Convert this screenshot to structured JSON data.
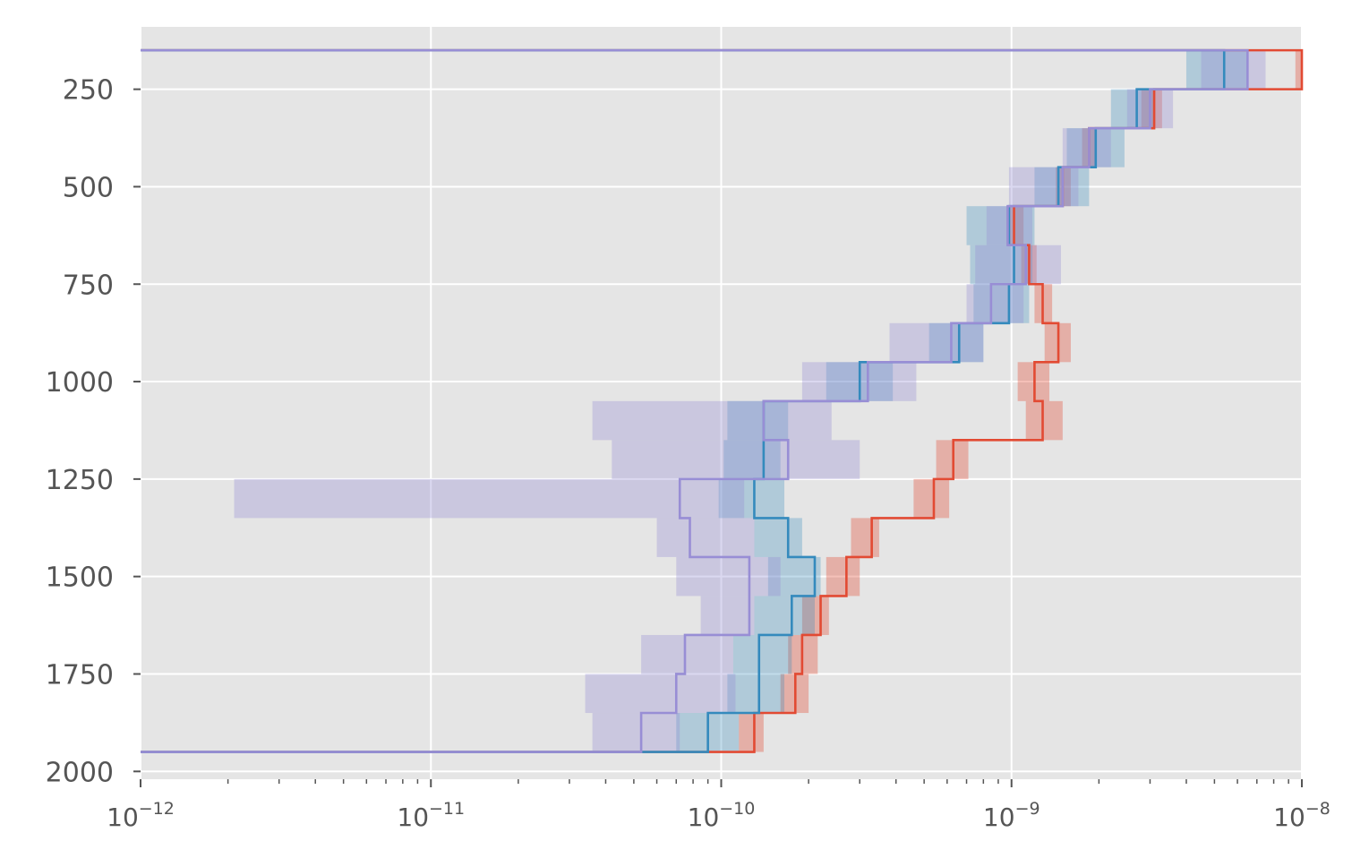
{
  "chart_data": {
    "type": "line",
    "subtype": "step-profile-with-uncertainty-bands",
    "title": "",
    "xlabel": "",
    "ylabel": "",
    "x_scale": "log",
    "xlim": [
      1e-12,
      1e-08
    ],
    "ylim": [
      2020,
      90
    ],
    "y_inverted": true,
    "x_tick_labels": [
      {
        "value": 1e-12,
        "base": "10",
        "exp": "−12"
      },
      {
        "value": 1e-11,
        "base": "10",
        "exp": "−11"
      },
      {
        "value": 1e-10,
        "base": "10",
        "exp": "−10"
      },
      {
        "value": 1e-09,
        "base": "10",
        "exp": "−9"
      },
      {
        "value": 1e-08,
        "base": "10",
        "exp": "−8"
      }
    ],
    "y_ticks": [
      250,
      500,
      750,
      1000,
      1250,
      1500,
      1750,
      2000
    ],
    "y_tick_labels": [
      "250",
      "500",
      "750",
      "1000",
      "1250",
      "1500",
      "1750",
      "2000"
    ],
    "grid": true,
    "background": "#e5e5e5",
    "grid_color": "#ffffff",
    "series": [
      {
        "color": "#e24a33",
        "band_opacity": 0.35,
        "profile": [
          {
            "y0": 150,
            "y1": 250,
            "x": 1e-08,
            "lo": 9.5e-09,
            "hi": 1e-08
          },
          {
            "y0": 250,
            "y1": 350,
            "x": 3.1e-09,
            "lo": 2.8e-09,
            "hi": 3.3e-09
          },
          {
            "y0": 350,
            "y1": 450,
            "x": 1.85e-09,
            "lo": 1.75e-09,
            "hi": 1.95e-09
          },
          {
            "y0": 450,
            "y1": 550,
            "x": 1.5e-09,
            "lo": 1.42e-09,
            "hi": 1.6e-09
          },
          {
            "y0": 550,
            "y1": 650,
            "x": 1.02e-09,
            "lo": 9.6e-10,
            "hi": 1.1e-09
          },
          {
            "y0": 650,
            "y1": 750,
            "x": 1.15e-09,
            "lo": 1.08e-09,
            "hi": 1.22e-09
          },
          {
            "y0": 750,
            "y1": 850,
            "x": 1.28e-09,
            "lo": 1.2e-09,
            "hi": 1.38e-09
          },
          {
            "y0": 850,
            "y1": 950,
            "x": 1.45e-09,
            "lo": 1.3e-09,
            "hi": 1.6e-09
          },
          {
            "y0": 950,
            "y1": 1050,
            "x": 1.2e-09,
            "lo": 1.05e-09,
            "hi": 1.35e-09
          },
          {
            "y0": 1050,
            "y1": 1150,
            "x": 1.28e-09,
            "lo": 1.12e-09,
            "hi": 1.5e-09
          },
          {
            "y0": 1150,
            "y1": 1250,
            "x": 6.3e-10,
            "lo": 5.5e-10,
            "hi": 7.1e-10
          },
          {
            "y0": 1250,
            "y1": 1350,
            "x": 5.4e-10,
            "lo": 4.6e-10,
            "hi": 6.1e-10
          },
          {
            "y0": 1350,
            "y1": 1450,
            "x": 3.3e-10,
            "lo": 2.8e-10,
            "hi": 3.5e-10
          },
          {
            "y0": 1450,
            "y1": 1550,
            "x": 2.7e-10,
            "lo": 2.3e-10,
            "hi": 3e-10
          },
          {
            "y0": 1550,
            "y1": 1650,
            "x": 2.2e-10,
            "lo": 1.9e-10,
            "hi": 2.35e-10
          },
          {
            "y0": 1650,
            "y1": 1750,
            "x": 1.9e-10,
            "lo": 1.7e-10,
            "hi": 2.15e-10
          },
          {
            "y0": 1750,
            "y1": 1850,
            "x": 1.8e-10,
            "lo": 1.6e-10,
            "hi": 2e-10
          },
          {
            "y0": 1850,
            "y1": 1950,
            "x": 1.3e-10,
            "lo": 1.15e-10,
            "hi": 1.4e-10
          }
        ]
      },
      {
        "color": "#348abd",
        "band_opacity": 0.3,
        "profile": [
          {
            "y0": 150,
            "y1": 250,
            "x": 5.4e-09,
            "lo": 4e-09,
            "hi": 6.5e-09
          },
          {
            "y0": 250,
            "y1": 350,
            "x": 2.7e-09,
            "lo": 2.2e-09,
            "hi": 3.1e-09
          },
          {
            "y0": 350,
            "y1": 450,
            "x": 1.95e-09,
            "lo": 1.55e-09,
            "hi": 2.45e-09
          },
          {
            "y0": 450,
            "y1": 550,
            "x": 1.45e-09,
            "lo": 1.2e-09,
            "hi": 1.85e-09
          },
          {
            "y0": 550,
            "y1": 650,
            "x": 9.8e-10,
            "lo": 7e-10,
            "hi": 1.2e-09
          },
          {
            "y0": 650,
            "y1": 750,
            "x": 1.02e-09,
            "lo": 7.2e-10,
            "hi": 1.18e-09
          },
          {
            "y0": 750,
            "y1": 850,
            "x": 9.8e-10,
            "lo": 7.4e-10,
            "hi": 1.15e-09
          },
          {
            "y0": 850,
            "y1": 950,
            "x": 6.6e-10,
            "lo": 5.2e-10,
            "hi": 8e-10
          },
          {
            "y0": 950,
            "y1": 1050,
            "x": 3e-10,
            "lo": 2.3e-10,
            "hi": 3.9e-10
          },
          {
            "y0": 1050,
            "y1": 1150,
            "x": 1.4e-10,
            "lo": 1.05e-10,
            "hi": 1.7e-10
          },
          {
            "y0": 1150,
            "y1": 1250,
            "x": 1.4e-10,
            "lo": 1.02e-10,
            "hi": 1.6e-10
          },
          {
            "y0": 1250,
            "y1": 1350,
            "x": 1.3e-10,
            "lo": 9.8e-11,
            "hi": 1.65e-10
          },
          {
            "y0": 1350,
            "y1": 1450,
            "x": 1.7e-10,
            "lo": 1.3e-10,
            "hi": 1.9e-10
          },
          {
            "y0": 1450,
            "y1": 1550,
            "x": 2.1e-10,
            "lo": 1.45e-10,
            "hi": 2.2e-10
          },
          {
            "y0": 1550,
            "y1": 1650,
            "x": 1.75e-10,
            "lo": 1.3e-10,
            "hi": 2.1e-10
          },
          {
            "y0": 1650,
            "y1": 1750,
            "x": 1.35e-10,
            "lo": 1.1e-10,
            "hi": 1.75e-10
          },
          {
            "y0": 1750,
            "y1": 1850,
            "x": 1.35e-10,
            "lo": 1.05e-10,
            "hi": 1.65e-10
          },
          {
            "y0": 1850,
            "y1": 1950,
            "x": 9e-11,
            "lo": 7e-11,
            "hi": 1.15e-10
          }
        ]
      },
      {
        "color": "#988ed5",
        "band_opacity": 0.35,
        "profile": [
          {
            "y0": 150,
            "y1": 250,
            "x": 6.5e-09,
            "lo": 4.5e-09,
            "hi": 7.5e-09
          },
          {
            "y0": 250,
            "y1": 350,
            "x": 3e-09,
            "lo": 2.5e-09,
            "hi": 3.6e-09
          },
          {
            "y0": 350,
            "y1": 450,
            "x": 1.85e-09,
            "lo": 1.5e-09,
            "hi": 2.2e-09
          },
          {
            "y0": 450,
            "y1": 550,
            "x": 1.5e-09,
            "lo": 9.8e-10,
            "hi": 1.7e-09
          },
          {
            "y0": 550,
            "y1": 650,
            "x": 9.7e-10,
            "lo": 8.2e-10,
            "hi": 1.18e-09
          },
          {
            "y0": 650,
            "y1": 750,
            "x": 1.12e-09,
            "lo": 7.5e-10,
            "hi": 1.48e-09
          },
          {
            "y0": 750,
            "y1": 850,
            "x": 8.5e-10,
            "lo": 7e-10,
            "hi": 1.1e-09
          },
          {
            "y0": 850,
            "y1": 950,
            "x": 6.2e-10,
            "lo": 3.8e-10,
            "hi": 8e-10
          },
          {
            "y0": 950,
            "y1": 1050,
            "x": 3.2e-10,
            "lo": 1.9e-10,
            "hi": 4.7e-10
          },
          {
            "y0": 1050,
            "y1": 1150,
            "x": 1.4e-10,
            "lo": 3.6e-11,
            "hi": 2.4e-10
          },
          {
            "y0": 1150,
            "y1": 1250,
            "x": 1.7e-10,
            "lo": 4.2e-11,
            "hi": 3e-10
          },
          {
            "y0": 1250,
            "y1": 1350,
            "x": 7.2e-11,
            "lo": 2.1e-12,
            "hi": 1.2e-10
          },
          {
            "y0": 1350,
            "y1": 1450,
            "x": 7.8e-11,
            "lo": 6e-11,
            "hi": 1.3e-10
          },
          {
            "y0": 1450,
            "y1": 1550,
            "x": 1.25e-10,
            "lo": 7e-11,
            "hi": 1.6e-10
          },
          {
            "y0": 1550,
            "y1": 1650,
            "x": 1.25e-10,
            "lo": 8.5e-11,
            "hi": 1.3e-10
          },
          {
            "y0": 1650,
            "y1": 1750,
            "x": 7.5e-11,
            "lo": 5.3e-11,
            "hi": 1.1e-10
          },
          {
            "y0": 1750,
            "y1": 1850,
            "x": 7e-11,
            "lo": 3.4e-11,
            "hi": 1.12e-10
          },
          {
            "y0": 1850,
            "y1": 1950,
            "x": 5.3e-11,
            "lo": 3.6e-11,
            "hi": 7.2e-11
          }
        ]
      }
    ]
  }
}
